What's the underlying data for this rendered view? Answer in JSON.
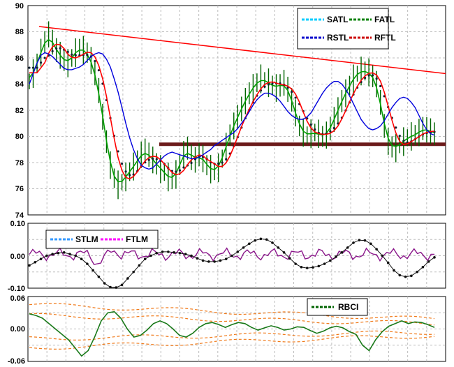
{
  "chart_data": [
    {
      "type": "line",
      "panel": "price",
      "ylim": [
        74,
        90
      ],
      "y_ticks": [
        "74",
        "76",
        "78",
        "80",
        "82",
        "84",
        "86",
        "88",
        "90"
      ],
      "grid": true,
      "legend_position": "top-right",
      "series": [
        {
          "name": "SATL",
          "color": "#00ccff",
          "style": "dashed"
        },
        {
          "name": "FATL",
          "color": "#008000",
          "style": "dashed"
        },
        {
          "name": "RSTL",
          "color": "#0000cc",
          "style": "dashed"
        },
        {
          "name": "RFTL",
          "color": "#cc0000",
          "style": "dashed"
        }
      ],
      "price_bars": {
        "color": "#006400",
        "values": [
          84.2,
          84.8,
          85.6,
          86.4,
          87.2,
          87.8,
          87.2,
          86.6,
          86.2,
          85.8,
          85.6,
          86.0,
          86.4,
          86.8,
          86.6,
          86.4,
          85.8,
          84.8,
          83.5,
          81.5,
          79.6,
          77.8,
          76.8,
          76.3,
          76.5,
          76.9,
          77.3,
          77.7,
          78.1,
          78.6,
          78.9,
          78.6,
          78.2,
          77.9,
          77.5,
          77.3,
          76.9,
          76.6,
          77.1,
          77.8,
          78.6,
          79.1,
          78.4,
          78.2,
          78.6,
          78.3,
          77.8,
          77.5,
          77.3,
          77.6,
          78.3,
          79.2,
          80.1,
          80.8,
          81.5,
          82.1,
          82.7,
          83.3,
          83.7,
          84.1,
          84.4,
          84.3,
          84.1,
          83.9,
          83.7,
          83.9,
          84.1,
          83.6,
          82.8,
          81.8,
          80.8,
          80.3,
          80.1,
          80.2,
          80.3,
          80.2,
          80.0,
          80.1,
          80.6,
          81.3,
          82.0,
          82.7,
          83.3,
          83.9,
          84.4,
          84.8,
          85.0,
          85.0,
          84.9,
          84.6,
          84.0,
          82.6,
          80.8,
          79.6,
          79.2,
          79.1,
          79.4,
          79.6,
          79.9,
          80.0,
          80.1,
          80.3,
          80.6,
          80.5,
          80.4,
          80.2
        ]
      },
      "rstl": [
        84.0,
        84.8,
        85.6,
        86.2,
        86.4,
        86.3,
        86.1,
        85.8,
        85.5,
        85.2,
        85.1,
        85.1,
        85.2,
        85.3,
        85.5,
        85.8,
        86.1,
        86.3,
        86.4,
        86.3,
        85.9,
        85.3,
        84.4,
        83.4,
        82.2,
        81.0,
        79.9,
        79.0,
        78.3,
        77.8,
        77.6,
        77.5,
        77.6,
        77.9,
        78.2,
        78.5,
        78.7,
        78.8,
        78.7,
        78.6,
        78.5,
        78.4,
        78.3,
        78.3,
        78.4,
        78.6,
        78.8,
        79.0,
        79.3,
        79.5,
        79.7,
        79.9,
        80.1,
        80.3,
        80.6,
        81.0,
        81.4,
        81.9,
        82.4,
        82.8,
        83.1,
        83.3,
        83.3,
        83.2,
        83.0,
        82.7,
        82.3,
        81.9,
        81.6,
        81.4,
        81.3,
        81.3,
        81.5,
        81.8,
        82.3,
        82.8,
        83.3,
        83.7,
        84.0,
        84.2,
        84.2,
        84.0,
        83.6,
        83.1,
        82.5,
        81.9,
        81.3,
        80.9,
        80.6,
        80.5,
        80.6,
        80.8,
        81.2,
        81.7,
        82.2,
        82.6,
        82.9,
        83.0,
        82.9,
        82.6,
        82.2,
        81.6,
        81.0,
        80.5,
        80.2,
        80.1
      ]
    },
    {
      "type": "line",
      "panel": "stlm-ftlm",
      "ylim": [
        -0.1,
        0.1
      ],
      "y_ticks": [
        "0.10",
        "0.00",
        "-0.10"
      ],
      "grid": true,
      "legend_position": "top-left",
      "series": [
        {
          "name": "STLM",
          "color": "#3399ff",
          "style": "dashed"
        },
        {
          "name": "FTLM",
          "color": "#ff00ff",
          "style": "dashed"
        }
      ],
      "stlm": [
        -0.03,
        -0.02,
        -0.01,
        0.0,
        0.005,
        0.008,
        0.01,
        0.005,
        0.0,
        -0.01,
        -0.025,
        -0.045,
        -0.065,
        -0.085,
        -0.097,
        -0.098,
        -0.09,
        -0.07,
        -0.05,
        -0.03,
        -0.01,
        0.0,
        0.008,
        0.012,
        0.012,
        0.01,
        0.008,
        0.005,
        0.0,
        -0.008,
        -0.015,
        -0.018,
        -0.018,
        -0.015,
        -0.01,
        0.0,
        0.012,
        0.025,
        0.037,
        0.047,
        0.052,
        0.05,
        0.04,
        0.025,
        0.01,
        -0.008,
        -0.025,
        -0.035,
        -0.038,
        -0.036,
        -0.032,
        -0.025,
        -0.015,
        -0.003,
        0.01,
        0.025,
        0.04,
        0.048,
        0.047,
        0.037,
        0.02,
        0.0,
        -0.022,
        -0.045,
        -0.06,
        -0.065,
        -0.062,
        -0.05,
        -0.035,
        -0.018,
        -0.005
      ]
    },
    {
      "type": "line",
      "panel": "rbci",
      "ylim": [
        -0.06,
        0.06
      ],
      "y_ticks": [
        "0.06",
        "0.00",
        "-0.06"
      ],
      "grid": true,
      "legend_position": "top-right",
      "series": [
        {
          "name": "RBCI",
          "color": "#006400",
          "style": "dashed"
        }
      ],
      "rbci": [
        0.028,
        0.025,
        0.02,
        0.01,
        0.0,
        -0.01,
        -0.02,
        -0.035,
        -0.05,
        -0.04,
        -0.015,
        0.015,
        0.03,
        0.032,
        0.02,
        0.0,
        -0.015,
        -0.012,
        -0.002,
        0.01,
        0.015,
        0.01,
        0.0,
        -0.012,
        -0.015,
        -0.008,
        0.003,
        0.01,
        0.012,
        0.008,
        0.003,
        0.008,
        0.012,
        0.01,
        0.003,
        -0.002,
        0.002,
        0.006,
        0.003,
        -0.002,
        0.0,
        0.004,
        0.003,
        -0.003,
        -0.008,
        -0.004,
        0.002,
        0.005,
        0.002,
        -0.005,
        -0.01,
        -0.03,
        -0.04,
        -0.02,
        -0.005,
        0.005,
        0.01,
        0.015,
        0.01,
        0.013,
        0.012,
        0.008,
        0.003
      ]
    }
  ]
}
